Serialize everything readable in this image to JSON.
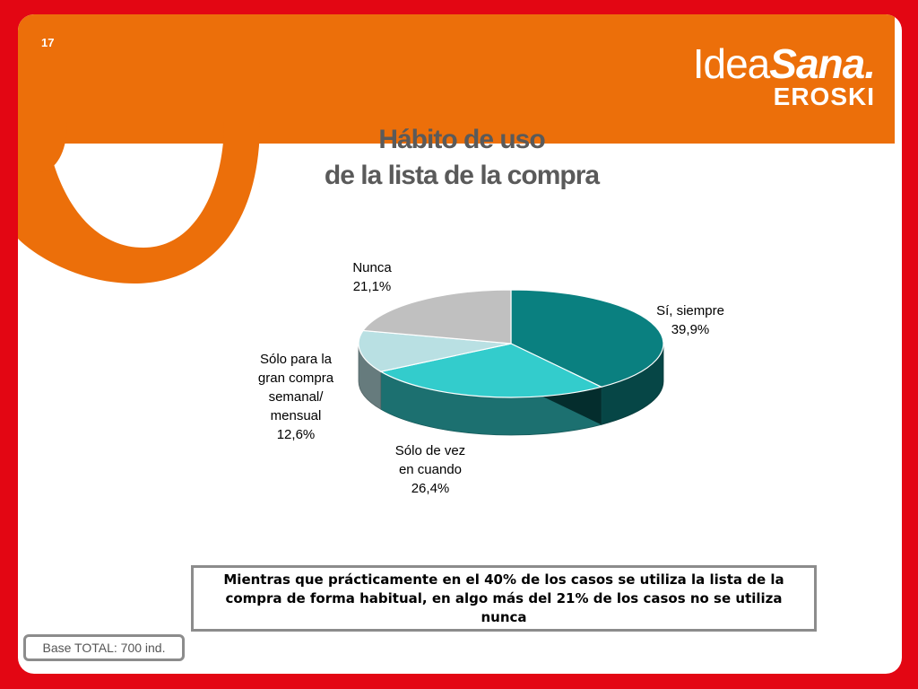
{
  "slide": {
    "page_number": "17",
    "logo": {
      "part1": "Idea",
      "part2": "Sana.",
      "part3": "EROSKI"
    },
    "title_line1": "Hábito de uso",
    "title_line2": "de la lista de la compra",
    "note": "Mientras que prácticamente en el 40% de los casos se utiliza la lista de la compra de forma habitual, en algo más del 21% de los casos no se utiliza nunca",
    "base": "Base TOTAL: 700 ind."
  },
  "colors": {
    "background": "#e30613",
    "orange": "#ec6f0a",
    "slice_si_siempre": "#0a8080",
    "slice_de_vez": "#33cccc",
    "slice_gran_compra": "#b9e0e3",
    "slice_nunca": "#c0c0c0"
  },
  "chart_data": {
    "type": "pie",
    "style": "3d",
    "slices": [
      {
        "label_lines": [
          "Sí, siempre"
        ],
        "value": 39.9,
        "value_label": "39,9%"
      },
      {
        "label_lines": [
          "Sólo de vez",
          "en cuando"
        ],
        "value": 26.4,
        "value_label": "26,4%"
      },
      {
        "label_lines": [
          "Sólo para la",
          "gran compra",
          "semanal/",
          "mensual"
        ],
        "value": 12.6,
        "value_label": "12,6%"
      },
      {
        "label_lines": [
          "Nunca"
        ],
        "value": 21.1,
        "value_label": "21,1%"
      }
    ]
  }
}
